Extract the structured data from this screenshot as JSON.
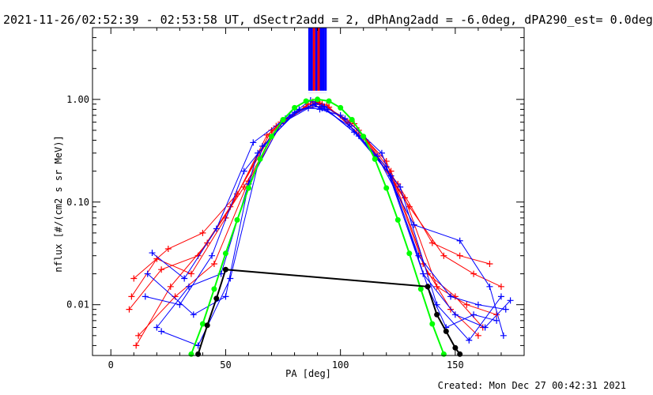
{
  "title": "2021-11-26/02:52:39 - 02:53:58 UT, dSectr2add = 2, dPhAng2add = -6.0deg, dPA290_est=  0.0deg",
  "footer": "Created: Mon Dec 27 00:42:31 2021",
  "colors": {
    "red": "#ff0000",
    "blue": "#0000ff",
    "green": "#00ff00",
    "black": "#000000"
  },
  "chart_data": {
    "type": "line",
    "xlabel": "PA [deg]",
    "ylabel": "nflux [#/(cm2 s sr MeV)]",
    "xlim": [
      -8,
      180
    ],
    "ylim": [
      0.0032,
      5.0
    ],
    "yscale": "log",
    "xticks": [
      0,
      50,
      100,
      150
    ],
    "xticklabels": [
      "0",
      "50",
      "100",
      "150"
    ],
    "yticks": [
      1.0,
      0.1,
      0.01
    ],
    "yticklabels": [
      "1.00",
      "0.10",
      "0.01"
    ],
    "vertical_lines": [
      {
        "x": 86.5,
        "color": "blue"
      },
      {
        "x": 87.5,
        "color": "blue"
      },
      {
        "x": 88.5,
        "color": "red"
      },
      {
        "x": 89.5,
        "color": "blue"
      },
      {
        "x": 90.5,
        "color": "red"
      },
      {
        "x": 91.5,
        "color": "blue"
      },
      {
        "x": 92.5,
        "color": "blue"
      },
      {
        "x": 93.5,
        "color": "blue"
      }
    ],
    "series": [
      {
        "color": "red",
        "marker": "+",
        "x": [
          10,
          25,
          40,
          55,
          72,
          88,
          92,
          108,
          125,
          140,
          152,
          165
        ],
        "y": [
          0.018,
          0.035,
          0.05,
          0.12,
          0.55,
          0.95,
          0.9,
          0.5,
          0.15,
          0.04,
          0.03,
          0.025
        ]
      },
      {
        "color": "red",
        "marker": "+",
        "x": [
          8,
          22,
          38,
          52,
          70,
          86,
          94,
          110,
          128,
          142,
          155,
          168
        ],
        "y": [
          0.009,
          0.022,
          0.03,
          0.09,
          0.5,
          0.9,
          0.88,
          0.42,
          0.11,
          0.015,
          0.01,
          0.008
        ]
      },
      {
        "color": "red",
        "marker": "+",
        "x": [
          12,
          28,
          45,
          60,
          75,
          89,
          91,
          106,
          122,
          138,
          150,
          162
        ],
        "y": [
          0.005,
          0.012,
          0.025,
          0.16,
          0.62,
          0.92,
          0.92,
          0.58,
          0.2,
          0.02,
          0.012,
          0.006
        ]
      },
      {
        "color": "red",
        "marker": "+",
        "x": [
          9,
          20,
          35,
          50,
          68,
          85,
          95,
          112,
          130,
          145,
          158,
          170
        ],
        "y": [
          0.012,
          0.028,
          0.02,
          0.07,
          0.45,
          0.85,
          0.84,
          0.38,
          0.09,
          0.03,
          0.02,
          0.015
        ]
      },
      {
        "color": "red",
        "marker": "+",
        "x": [
          11,
          26,
          42,
          58,
          74,
          90,
          104,
          120,
          136,
          148,
          160
        ],
        "y": [
          0.004,
          0.015,
          0.04,
          0.14,
          0.6,
          0.95,
          0.6,
          0.25,
          0.025,
          0.009,
          0.005
        ]
      },
      {
        "color": "blue",
        "marker": "+",
        "x": [
          18,
          32,
          46,
          62,
          78,
          87,
          93,
          102,
          118,
          134,
          148,
          160,
          172
        ],
        "y": [
          0.032,
          0.018,
          0.055,
          0.38,
          0.7,
          0.98,
          0.85,
          0.65,
          0.3,
          0.03,
          0.012,
          0.01,
          0.009
        ]
      },
      {
        "color": "blue",
        "marker": "+",
        "x": [
          15,
          30,
          44,
          58,
          76,
          88,
          92,
          104,
          120,
          136,
          150,
          163,
          174
        ],
        "y": [
          0.012,
          0.01,
          0.03,
          0.2,
          0.65,
          0.88,
          0.82,
          0.55,
          0.22,
          0.02,
          0.008,
          0.006,
          0.011
        ]
      },
      {
        "color": "blue",
        "marker": "+",
        "x": [
          20,
          34,
          48,
          64,
          80,
          89,
          91,
          100,
          116,
          132,
          152,
          165,
          171
        ],
        "y": [
          0.006,
          0.015,
          0.02,
          0.3,
          0.75,
          0.9,
          0.8,
          0.7,
          0.28,
          0.06,
          0.042,
          0.015,
          0.005
        ]
      },
      {
        "color": "blue",
        "marker": "+",
        "x": [
          16,
          36,
          50,
          60,
          74,
          86,
          94,
          106,
          122,
          138,
          146,
          158,
          168
        ],
        "y": [
          0.02,
          0.008,
          0.012,
          0.15,
          0.58,
          0.82,
          0.8,
          0.48,
          0.18,
          0.015,
          0.006,
          0.008,
          0.007
        ]
      },
      {
        "color": "blue",
        "marker": "+",
        "x": [
          22,
          38,
          52,
          66,
          82,
          92,
          108,
          126,
          142,
          156,
          170
        ],
        "y": [
          0.0055,
          0.004,
          0.018,
          0.35,
          0.8,
          0.86,
          0.44,
          0.14,
          0.01,
          0.0045,
          0.012
        ]
      },
      {
        "color": "green",
        "marker": "dot",
        "x": [
          35,
          40,
          45,
          50,
          55,
          60,
          65,
          70,
          75,
          80,
          85,
          90,
          95,
          100,
          105,
          110,
          115,
          120,
          125,
          130,
          135,
          140,
          145
        ],
        "y": [
          0.0033,
          0.0065,
          0.0142,
          0.0316,
          0.067,
          0.137,
          0.262,
          0.436,
          0.635,
          0.829,
          0.962,
          1.0,
          0.962,
          0.829,
          0.635,
          0.436,
          0.262,
          0.137,
          0.067,
          0.0316,
          0.0142,
          0.0065,
          0.0033
        ]
      },
      {
        "color": "black",
        "marker": "dot",
        "x": [
          38,
          42,
          46,
          50,
          138,
          142,
          146,
          150,
          152
        ],
        "y": [
          0.0033,
          0.0063,
          0.0115,
          0.022,
          0.015,
          0.008,
          0.0055,
          0.0038,
          0.0033
        ]
      }
    ]
  }
}
